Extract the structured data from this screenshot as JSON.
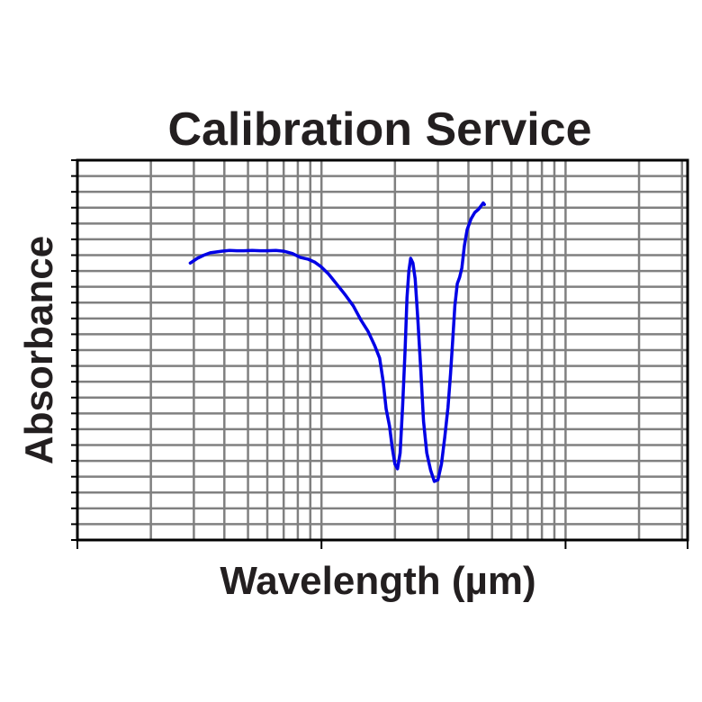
{
  "chart_data": {
    "type": "line",
    "title": "Calibration Service",
    "xlabel": "Wavelength (µm)",
    "ylabel": "Absorbance",
    "x_scale": "log",
    "x_decades": 2.5,
    "y_scale": "linear",
    "grid": true,
    "legend": "none",
    "tick_labels": false,
    "ylim": [
      0,
      24
    ],
    "series": [
      {
        "color": "#0000e6",
        "points": [
          [
            0.29,
            17.5
          ],
          [
            0.31,
            17.8
          ],
          [
            0.33,
            18.0
          ],
          [
            0.35,
            18.15
          ],
          [
            0.37,
            18.2
          ],
          [
            0.39,
            18.25
          ],
          [
            0.42,
            18.3
          ],
          [
            0.45,
            18.28
          ],
          [
            0.48,
            18.28
          ],
          [
            0.52,
            18.3
          ],
          [
            0.56,
            18.28
          ],
          [
            0.6,
            18.28
          ],
          [
            0.65,
            18.3
          ],
          [
            0.7,
            18.25
          ],
          [
            0.76,
            18.1
          ],
          [
            0.82,
            17.85
          ],
          [
            0.88,
            17.75
          ],
          [
            0.94,
            17.55
          ],
          [
            1.0,
            17.25
          ],
          [
            1.07,
            16.8
          ],
          [
            1.15,
            16.2
          ],
          [
            1.25,
            15.5
          ],
          [
            1.35,
            14.8
          ],
          [
            1.45,
            13.9
          ],
          [
            1.55,
            13.2
          ],
          [
            1.65,
            12.3
          ],
          [
            1.73,
            11.5
          ],
          [
            1.79,
            10.0
          ],
          [
            1.84,
            8.3
          ],
          [
            1.9,
            7.2
          ],
          [
            1.95,
            5.8
          ],
          [
            2.0,
            4.8
          ],
          [
            2.05,
            4.5
          ],
          [
            2.1,
            5.5
          ],
          [
            2.15,
            8.5
          ],
          [
            2.2,
            12.0
          ],
          [
            2.24,
            15.3
          ],
          [
            2.28,
            17.0
          ],
          [
            2.32,
            17.8
          ],
          [
            2.37,
            17.5
          ],
          [
            2.42,
            16.5
          ],
          [
            2.48,
            14.0
          ],
          [
            2.55,
            10.8
          ],
          [
            2.62,
            7.5
          ],
          [
            2.7,
            5.5
          ],
          [
            2.8,
            4.4
          ],
          [
            2.9,
            3.7
          ],
          [
            3.0,
            3.8
          ],
          [
            3.1,
            4.8
          ],
          [
            3.2,
            6.5
          ],
          [
            3.3,
            8.4
          ],
          [
            3.38,
            10.5
          ],
          [
            3.45,
            12.7
          ],
          [
            3.52,
            14.8
          ],
          [
            3.6,
            16.2
          ],
          [
            3.68,
            16.6
          ],
          [
            3.76,
            17.2
          ],
          [
            3.85,
            18.6
          ],
          [
            3.95,
            19.6
          ],
          [
            4.1,
            20.3
          ],
          [
            4.25,
            20.7
          ],
          [
            4.4,
            20.9
          ],
          [
            4.5,
            21.1
          ],
          [
            4.6,
            21.3
          ],
          [
            4.65,
            21.2
          ]
        ]
      }
    ]
  }
}
